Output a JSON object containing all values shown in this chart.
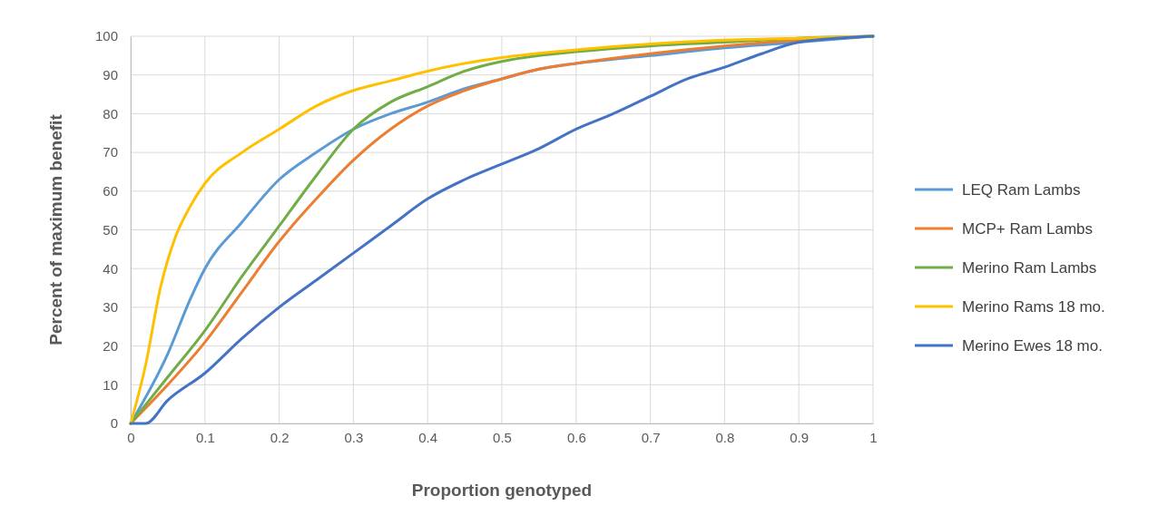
{
  "chart_data": {
    "type": "line",
    "xlabel": "Proportion genotyped",
    "ylabel": "Percent of maximum benefit",
    "xlim": [
      0,
      1
    ],
    "xticks": [
      0,
      0.1,
      0.2,
      0.3,
      0.4,
      0.5,
      0.6,
      0.7,
      0.8,
      0.9,
      1
    ],
    "ylim": [
      0,
      100
    ],
    "yticks": [
      0,
      10,
      20,
      30,
      40,
      50,
      60,
      70,
      80,
      90,
      100
    ],
    "grid": true,
    "legend": "right",
    "marker": "none",
    "line_style": "solid",
    "series": [
      {
        "name": "LEQ Ram Lambs",
        "color": "#5b9bd5",
        "x": [
          0,
          0.05,
          0.08,
          0.1,
          0.15,
          0.2,
          0.25,
          0.3,
          0.35,
          0.4,
          0.45,
          0.5,
          0.55,
          0.6,
          0.7,
          0.8,
          0.9,
          1
        ],
        "values": [
          0,
          18,
          32,
          40,
          52,
          63,
          70,
          76,
          80,
          83,
          86.5,
          89,
          91.5,
          93,
          95,
          97,
          98.5,
          100
        ]
      },
      {
        "name": "MCP+ Ram Lambs",
        "color": "#ed7d31",
        "x": [
          0,
          0.05,
          0.1,
          0.15,
          0.2,
          0.25,
          0.3,
          0.35,
          0.4,
          0.45,
          0.5,
          0.55,
          0.6,
          0.7,
          0.8,
          0.9,
          1
        ],
        "values": [
          0,
          10,
          21,
          34,
          47,
          58,
          68,
          76,
          82,
          86,
          89,
          91.5,
          93,
          95.5,
          97.5,
          99,
          100
        ]
      },
      {
        "name": "Merino Ram Lambs",
        "color": "#70ad47",
        "x": [
          0,
          0.05,
          0.1,
          0.15,
          0.2,
          0.25,
          0.3,
          0.35,
          0.4,
          0.45,
          0.5,
          0.55,
          0.6,
          0.7,
          0.8,
          0.9,
          1
        ],
        "values": [
          0,
          12,
          24,
          38,
          51,
          64,
          76,
          83,
          87,
          91,
          93.5,
          95,
          96,
          97.5,
          98.5,
          99.5,
          100
        ]
      },
      {
        "name": "Merino Rams 18 mo.",
        "color": "#ffc000",
        "x": [
          0,
          0.02,
          0.04,
          0.06,
          0.08,
          0.1,
          0.15,
          0.2,
          0.25,
          0.3,
          0.35,
          0.4,
          0.45,
          0.5,
          0.6,
          0.7,
          0.8,
          0.9,
          1
        ],
        "values": [
          0,
          15,
          35,
          48,
          56,
          62,
          70,
          76,
          82,
          86,
          88.5,
          91,
          93,
          94.5,
          96.5,
          98,
          99,
          99.5,
          100
        ]
      },
      {
        "name": "Merino Ewes 18 mo.",
        "color": "#4472c4",
        "x": [
          0,
          0.02,
          0.05,
          0.1,
          0.15,
          0.2,
          0.25,
          0.3,
          0.35,
          0.4,
          0.45,
          0.5,
          0.55,
          0.6,
          0.65,
          0.7,
          0.75,
          0.8,
          0.85,
          0.9,
          1
        ],
        "values": [
          0,
          0,
          6,
          13,
          22,
          30,
          37,
          44,
          51,
          58,
          63,
          67,
          71,
          76,
          80,
          84.5,
          89,
          92,
          95.5,
          98.5,
          100
        ]
      }
    ]
  }
}
